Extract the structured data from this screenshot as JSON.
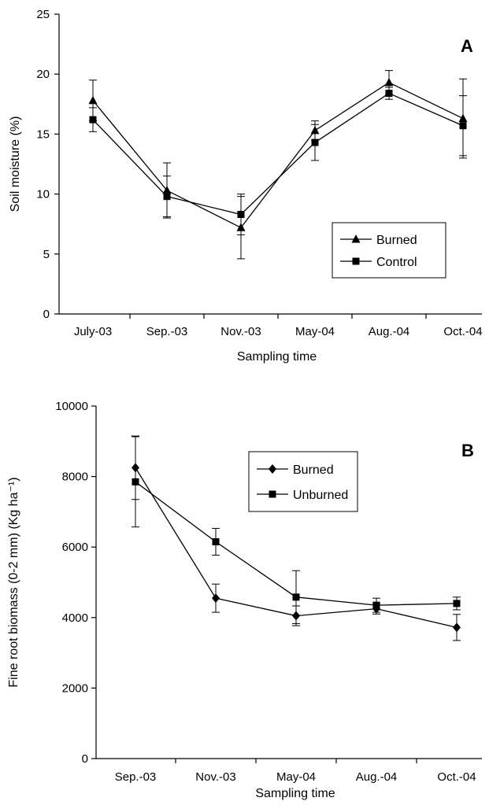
{
  "chart_data": [
    {
      "type": "line",
      "panel_label": "A",
      "categories": [
        "July-03",
        "Sep.-03",
        "Nov.-03",
        "May-04",
        "Aug.-04",
        "Oct.-04"
      ],
      "xlabel": "Sampling time",
      "ylabel": "Soil moisture (%)",
      "ylim": [
        0,
        25
      ],
      "yticks": [
        0,
        5,
        10,
        15,
        20,
        25
      ],
      "legend_position": "bottom-right",
      "series": [
        {
          "name": "Burned",
          "marker": "triangle",
          "values": [
            17.8,
            10.3,
            7.2,
            15.3,
            19.3,
            16.3
          ],
          "errors": [
            1.7,
            2.3,
            2.6,
            0.8,
            1.0,
            3.3
          ]
        },
        {
          "name": "Control",
          "marker": "square",
          "values": [
            16.2,
            9.8,
            8.3,
            14.3,
            18.4,
            15.7
          ],
          "errors": [
            1.0,
            1.7,
            1.7,
            1.5,
            0.5,
            2.5
          ]
        }
      ]
    },
    {
      "type": "line",
      "panel_label": "B",
      "categories": [
        "Sep.-03",
        "Nov.-03",
        "May-04",
        "Aug.-04",
        "Oct.-04"
      ],
      "xlabel": "Sampling time",
      "ylabel": "Fine root biomass (0-2 mm) (Kg ha⁻¹)",
      "ylim": [
        0,
        10000
      ],
      "yticks": [
        0,
        2000,
        4000,
        6000,
        8000,
        10000
      ],
      "legend_position": "top-center",
      "series": [
        {
          "name": "Burned",
          "marker": "diamond",
          "values": [
            8250,
            4550,
            4050,
            4250,
            3720
          ],
          "errors": [
            900,
            400,
            280,
            150,
            370
          ]
        },
        {
          "name": "Unburned",
          "marker": "square",
          "values": [
            7850,
            6150,
            4580,
            4350,
            4400
          ],
          "errors": [
            1280,
            380,
            750,
            200,
            180
          ]
        }
      ]
    }
  ]
}
